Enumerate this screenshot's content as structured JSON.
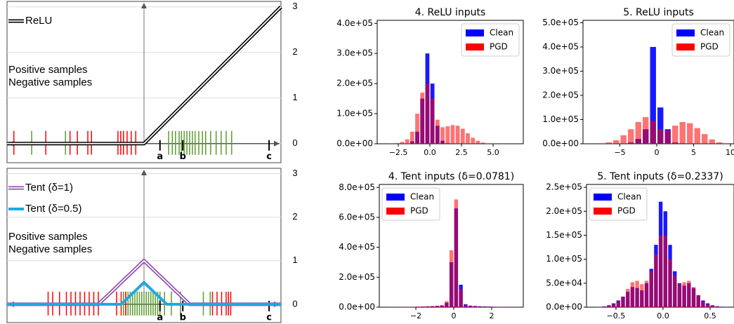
{
  "chart_data": [
    {
      "type": "line",
      "xlim": [
        -3,
        3
      ],
      "ylim": [
        -0.42,
        3.12
      ],
      "yticks": [
        0,
        1,
        2,
        3
      ],
      "grid": true,
      "legend": "upper left",
      "series": [
        {
          "name": "ReLU",
          "color": "#000000",
          "linestyle": "double",
          "x": [
            -3,
            0,
            3
          ],
          "values": [
            0,
            0,
            3
          ]
        }
      ],
      "samples": [
        {
          "name": "Positive samples",
          "color": "#5b9b2e",
          "x": [
            -2.46,
            -1.72,
            0.54,
            0.62,
            0.69,
            0.77,
            0.82,
            0.88,
            0.94,
            1.0,
            1.06,
            1.12,
            1.2,
            1.28,
            1.35,
            1.46,
            1.58,
            1.69,
            1.8,
            1.92
          ]
        },
        {
          "name": "Negative samples",
          "color": "#ff0000",
          "x": [
            -2.85,
            -2.15,
            -1.62,
            -1.46,
            -1.23,
            -1.15,
            -0.57,
            -0.51,
            -0.45,
            -0.37,
            -0.28,
            -0.18
          ]
        }
      ],
      "markers": [
        {
          "value": 0.35,
          "label": "a"
        },
        {
          "value": 0.85,
          "label": "b"
        },
        {
          "value": 2.74,
          "label": "c"
        }
      ]
    },
    {
      "type": "line",
      "xlim": [
        -3,
        3
      ],
      "ylim": [
        -0.42,
        3.12
      ],
      "yticks": [
        0,
        1,
        2,
        3
      ],
      "grid": true,
      "legend": "upper left",
      "series": [
        {
          "name": "Tent (δ=1)",
          "color": "#8e44ad",
          "linestyle": "double",
          "x": [
            -3,
            -1,
            0,
            1,
            3
          ],
          "values": [
            0,
            0,
            1,
            0,
            0
          ]
        },
        {
          "name": "Tent (δ=0.5)",
          "color": "#1fa8e0",
          "linestyle": "solid",
          "x": [
            -3,
            -0.5,
            0,
            0.5,
            3
          ],
          "values": [
            0,
            0,
            0.5,
            0,
            0
          ]
        }
      ],
      "samples": [
        {
          "name": "Positive samples",
          "color": "#5b9b2e",
          "x": [
            -0.45,
            -0.4,
            -0.35,
            -0.3,
            -0.25,
            -0.2,
            -0.15,
            -0.1,
            -0.05,
            0,
            0.05,
            0.1,
            0.15,
            0.2,
            0.25,
            0.3,
            0.35,
            0.45,
            0.6,
            0.8,
            1.3,
            1.45
          ]
        },
        {
          "name": "Negative samples",
          "color": "#ff0000",
          "x": [
            -2.1,
            -2.0,
            -1.85,
            -1.7,
            -1.6,
            -1.5,
            -1.4,
            -1.3,
            -1.2,
            -1.1,
            -1.0,
            -0.6,
            -0.5,
            -0.4,
            1.5,
            1.6,
            1.7,
            1.8,
            1.85,
            1.9
          ]
        }
      ],
      "markers": [
        {
          "value": 0.35,
          "label": "a"
        },
        {
          "value": 0.85,
          "label": "b"
        },
        {
          "value": 2.74,
          "label": "c"
        }
      ]
    },
    {
      "type": "histogram",
      "title": "4. ReLU inputs",
      "legend": "upper right",
      "xlim": [
        -4.17,
        7.39
      ],
      "ylim": [
        0,
        410000
      ],
      "xticks": [
        {
          "value": -2.5,
          "label": "−2.5"
        },
        {
          "value": 0,
          "label": "0.0"
        },
        2.5,
        {
          "value": 5,
          "label": "5.0"
        }
      ],
      "yticks": [
        {
          "value": 0,
          "label": "0.0e+00"
        },
        {
          "value": 100000,
          "label": "1.0e+05"
        },
        {
          "value": 200000,
          "label": "2.0e+05"
        },
        {
          "value": 300000,
          "label": "3.0e+05"
        },
        {
          "value": 400000,
          "label": "4.0e+05"
        }
      ],
      "bins": [
        -4,
        -3.6,
        -3.2,
        -2.8,
        -2.4,
        -2,
        -1.6,
        -1.2,
        -0.8,
        -0.4,
        0,
        0.4,
        0.8,
        1.2,
        1.6,
        2,
        2.4,
        2.8,
        3.2,
        3.6,
        4,
        4.4,
        4.8,
        5.2,
        5.6,
        6,
        6.4
      ],
      "series": [
        {
          "name": "Clean",
          "color": "#0000ff",
          "values": [
            0,
            0,
            0,
            0,
            0,
            1000,
            8000,
            40000,
            150000,
            300000,
            200000,
            60000,
            10000,
            2000,
            0,
            0,
            0,
            0,
            0,
            0,
            0,
            0,
            0,
            0,
            0,
            0
          ]
        },
        {
          "name": "PGD",
          "color": "#ff0000",
          "values": [
            0,
            0,
            500,
            2000,
            6000,
            15000,
            40000,
            100000,
            170000,
            200000,
            150000,
            80000,
            55000,
            58000,
            62000,
            60000,
            50000,
            35000,
            20000,
            10000,
            4000,
            1500,
            500,
            0,
            0,
            0
          ]
        }
      ]
    },
    {
      "type": "histogram",
      "title": "5. ReLU inputs",
      "legend": "upper right",
      "xlim": [
        -10,
        10.48
      ],
      "ylim": [
        0,
        510000
      ],
      "xticks": [
        {
          "value": -5,
          "label": "−5"
        },
        0,
        5,
        10
      ],
      "yticks": [
        {
          "value": 0,
          "label": "0.0e+00"
        },
        {
          "value": 100000,
          "label": "1.0e+05"
        },
        {
          "value": 200000,
          "label": "2.0e+05"
        },
        {
          "value": 300000,
          "label": "3.0e+05"
        },
        {
          "value": 400000,
          "label": "4.0e+05"
        },
        {
          "value": 500000,
          "label": "5.0e+05"
        }
      ],
      "bins": [
        -8,
        -7,
        -6,
        -5,
        -4,
        -3,
        -2,
        -1,
        0,
        1,
        2,
        3,
        4,
        5,
        6,
        7,
        8,
        9,
        10
      ],
      "series": [
        {
          "name": "Clean",
          "color": "#0000ff",
          "values": [
            0,
            0,
            0,
            1000,
            5000,
            20000,
            60000,
            400000,
            150000,
            60000,
            5000,
            2000,
            0,
            0,
            0,
            0,
            0,
            0
          ]
        },
        {
          "name": "PGD",
          "color": "#ff0000",
          "values": [
            2000,
            6000,
            15000,
            35000,
            60000,
            90000,
            110000,
            95000,
            60000,
            55000,
            75000,
            90000,
            85000,
            65000,
            40000,
            18000,
            6000,
            2000
          ]
        }
      ]
    },
    {
      "type": "histogram",
      "title": "4. Tent inputs (δ=0.0781)",
      "legend": "upper left",
      "xlim": [
        -3.93,
        3.67
      ],
      "ylim": [
        0,
        820000
      ],
      "xticks": [
        {
          "value": -2,
          "label": "−2"
        },
        0,
        2
      ],
      "yticks": [
        {
          "value": 0,
          "label": "0.0e+00"
        },
        {
          "value": 200000,
          "label": "2.0e+05"
        },
        {
          "value": 400000,
          "label": "4.0e+05"
        },
        {
          "value": 600000,
          "label": "6.0e+05"
        },
        {
          "value": 800000,
          "label": "8.0e+05"
        }
      ],
      "bins": [
        -3.5,
        -3.25,
        -3,
        -2.75,
        -2.5,
        -2.25,
        -2,
        -1.75,
        -1.5,
        -1.25,
        -1,
        -0.75,
        -0.5,
        -0.25,
        0,
        0.25,
        0.5,
        0.75,
        1,
        1.25,
        1.5,
        1.75,
        2,
        2.25,
        2.5,
        2.75,
        3,
        3.25,
        3.5
      ],
      "series": [
        {
          "name": "Clean",
          "color": "#0000ff",
          "values": [
            500,
            800,
            1000,
            1500,
            2000,
            2500,
            3000,
            4000,
            5000,
            6000,
            8000,
            10000,
            30000,
            300000,
            660000,
            150000,
            20000,
            10000,
            8000,
            6000,
            5000,
            4000,
            3000,
            2500,
            2000,
            1500,
            1000,
            500
          ]
        },
        {
          "name": "PGD",
          "color": "#ff0000",
          "values": [
            800,
            1000,
            1500,
            2000,
            2500,
            3000,
            4000,
            5000,
            6000,
            8000,
            10000,
            14000,
            40000,
            380000,
            720000,
            120000,
            15000,
            9000,
            7000,
            5000,
            4000,
            3000,
            2500,
            2000,
            1500,
            1000,
            800,
            500
          ]
        }
      ]
    },
    {
      "type": "histogram",
      "title": "5. Tent inputs (δ=0.2337)",
      "legend": "upper left",
      "xlim": [
        -0.813,
        0.754
      ],
      "ylim": [
        0,
        256000
      ],
      "xticks": [
        {
          "value": -0.5,
          "label": "−0.5"
        },
        {
          "value": 0,
          "label": "0.0"
        },
        0.5
      ],
      "yticks": [
        {
          "value": 0,
          "label": "0.0e+00"
        },
        {
          "value": 50000,
          "label": "5.0e+04"
        },
        {
          "value": 100000,
          "label": "1.0e+05"
        },
        {
          "value": 150000,
          "label": "1.5e+05"
        },
        {
          "value": 200000,
          "label": "2.0e+05"
        },
        {
          "value": 250000,
          "label": "2.5e+05"
        }
      ],
      "bins": [
        -0.75,
        -0.7,
        -0.65,
        -0.6,
        -0.55,
        -0.5,
        -0.45,
        -0.4,
        -0.35,
        -0.3,
        -0.25,
        -0.2,
        -0.15,
        -0.1,
        -0.05,
        0,
        0.05,
        0.1,
        0.15,
        0.2,
        0.25,
        0.3,
        0.35,
        0.4,
        0.45,
        0.5,
        0.55,
        0.6,
        0.65,
        0.7,
        0.75
      ],
      "series": [
        {
          "name": "Clean",
          "color": "#0000ff",
          "values": [
            0,
            500,
            1500,
            4000,
            8000,
            14000,
            22000,
            32000,
            42000,
            40000,
            35000,
            50000,
            80000,
            130000,
            220000,
            200000,
            130000,
            75000,
            50000,
            45000,
            50000,
            40000,
            25000,
            14000,
            8000,
            4000,
            2000,
            1000,
            300,
            100
          ]
        },
        {
          "name": "PGD",
          "color": "#ff0000",
          "values": [
            0,
            300,
            1000,
            3000,
            6000,
            12000,
            22000,
            38000,
            52000,
            55000,
            48000,
            55000,
            75000,
            110000,
            150000,
            150000,
            100000,
            65000,
            48000,
            52000,
            55000,
            42000,
            25000,
            12000,
            6000,
            3000,
            1500,
            500,
            200,
            0
          ]
        }
      ]
    }
  ]
}
